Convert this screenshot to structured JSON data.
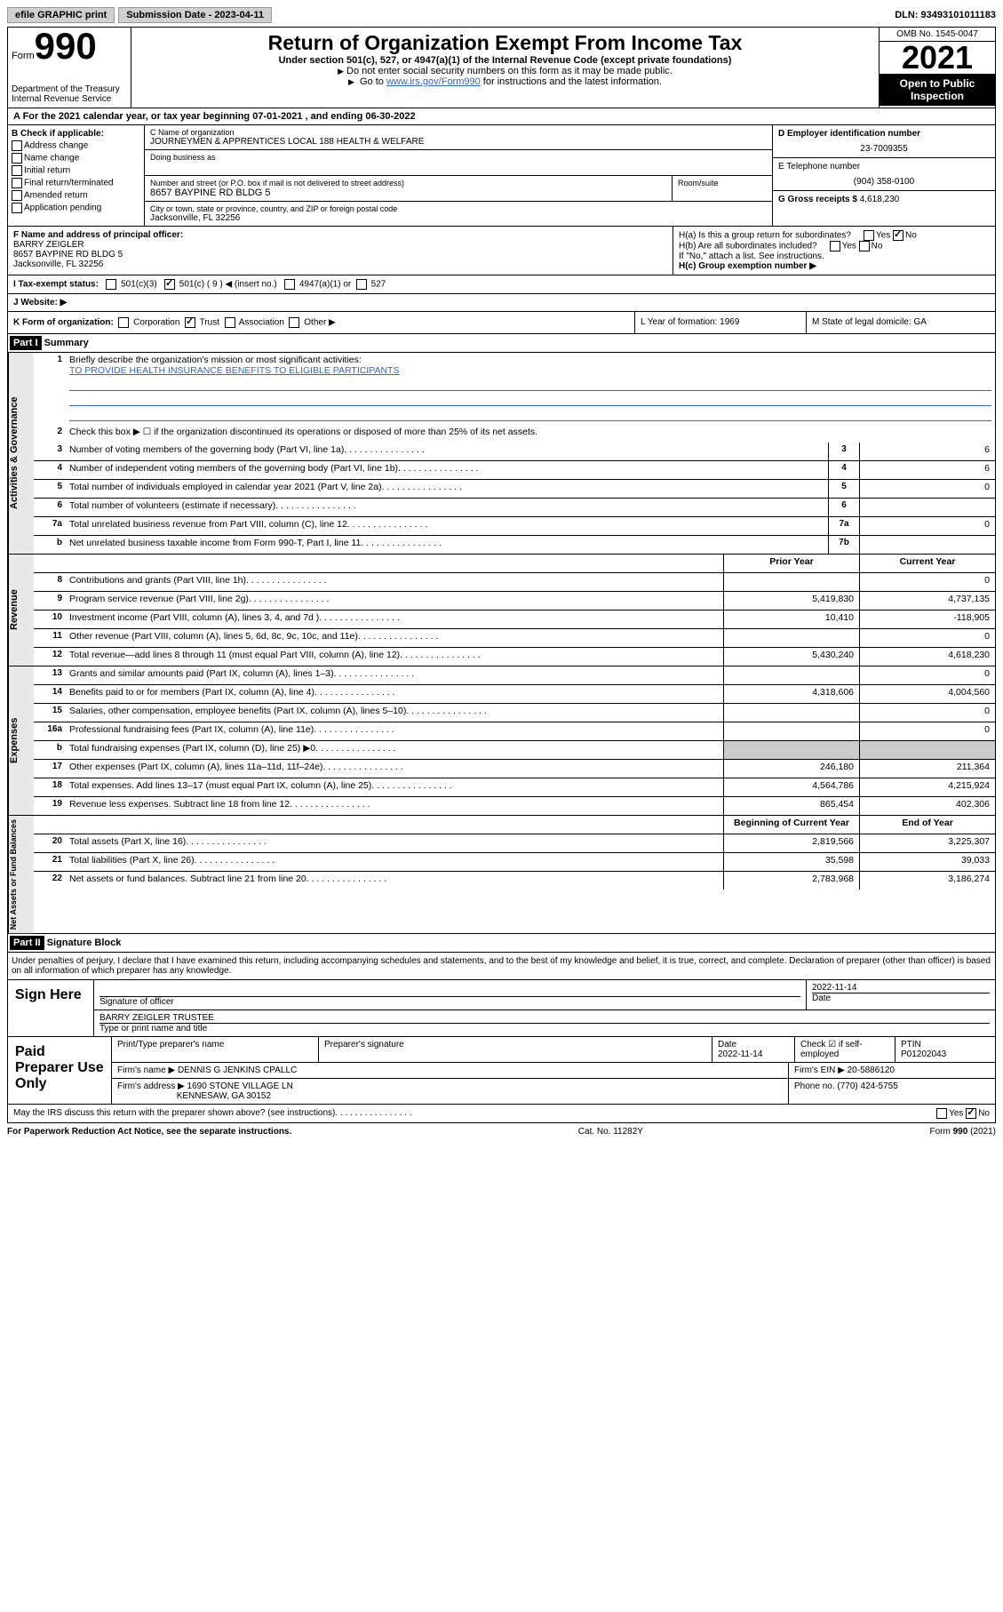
{
  "topbar": {
    "efile": "efile GRAPHIC print",
    "submission_label": "Submission Date - 2023-04-11",
    "dln_label": "DLN: 93493101011183"
  },
  "header": {
    "form_label": "Form",
    "form_num": "990",
    "title": "Return of Organization Exempt From Income Tax",
    "subtitle": "Under section 501(c), 527, or 4947(a)(1) of the Internal Revenue Code (except private foundations)",
    "note1": "Do not enter social security numbers on this form as it may be made public.",
    "note2_pre": "Go to ",
    "note2_link": "www.irs.gov/Form990",
    "note2_post": " for instructions and the latest information.",
    "dept": "Department of the Treasury\nInternal Revenue Service",
    "omb": "OMB No. 1545-0047",
    "year": "2021",
    "inspection": "Open to Public Inspection"
  },
  "section_a": "A For the 2021 calendar year, or tax year beginning 07-01-2021  , and ending 06-30-2022",
  "col_b": {
    "header": "B Check if applicable:",
    "items": [
      "Address change",
      "Name change",
      "Initial return",
      "Final return/terminated",
      "Amended return",
      "Application pending"
    ]
  },
  "col_c": {
    "name_label": "C Name of organization",
    "name": "JOURNEYMEN & APPRENTICES LOCAL 188 HEALTH & WELFARE",
    "dba_label": "Doing business as",
    "street_label": "Number and street (or P.O. box if mail is not delivered to street address)",
    "room_label": "Room/suite",
    "street": "8657 BAYPINE RD BLDG 5",
    "city_label": "City or town, state or province, country, and ZIP or foreign postal code",
    "city": "Jacksonville, FL  32256"
  },
  "col_de": {
    "d_label": "D Employer identification number",
    "d_val": "23-7009355",
    "e_label": "E Telephone number",
    "e_val": "(904) 358-0100",
    "g_label": "G Gross receipts $",
    "g_val": "4,618,230"
  },
  "officer": {
    "label": "F  Name and address of principal officer:",
    "name": "BARRY ZEIGLER",
    "addr1": "8657 BAYPINE RD BLDG 5",
    "addr2": "Jacksonville, FL  32256"
  },
  "h": {
    "a": "H(a)  Is this a group return for subordinates?",
    "b": "H(b)  Are all subordinates included?",
    "b_note": "If \"No,\" attach a list. See instructions.",
    "c": "H(c)  Group exemption number ▶"
  },
  "row_i": {
    "label": "I   Tax-exempt status:",
    "opt1": "501(c)(3)",
    "opt2": "501(c) ( 9 ) ◀ (insert no.)",
    "opt3": "4947(a)(1) or",
    "opt4": "527"
  },
  "row_j": "J   Website: ▶",
  "row_k": {
    "label": "K Form of organization:",
    "opts": [
      "Corporation",
      "Trust",
      "Association",
      "Other ▶"
    ],
    "l": "L Year of formation: 1969",
    "m": "M State of legal domicile: GA"
  },
  "part1": {
    "header": "Part I",
    "title": "Summary"
  },
  "summary": {
    "q1": "Briefly describe the organization's mission or most significant activities:",
    "mission": "TO PROVIDE HEALTH INSURANCE BENEFITS TO ELIGIBLE PARTICIPANTS",
    "q2": "Check this box ▶ ☐  if the organization discontinued its operations or disposed of more than 25% of its net assets.",
    "rows_gov": [
      {
        "n": "3",
        "label": "Number of voting members of the governing body (Part VI, line 1a)",
        "box": "3",
        "val": "6"
      },
      {
        "n": "4",
        "label": "Number of independent voting members of the governing body (Part VI, line 1b)",
        "box": "4",
        "val": "6"
      },
      {
        "n": "5",
        "label": "Total number of individuals employed in calendar year 2021 (Part V, line 2a)",
        "box": "5",
        "val": "0"
      },
      {
        "n": "6",
        "label": "Total number of volunteers (estimate if necessary)",
        "box": "6",
        "val": ""
      },
      {
        "n": "7a",
        "label": "Total unrelated business revenue from Part VIII, column (C), line 12",
        "box": "7a",
        "val": "0"
      },
      {
        "n": "b",
        "label": "Net unrelated business taxable income from Form 990-T, Part I, line 11",
        "box": "7b",
        "val": ""
      }
    ],
    "col_headers": {
      "prior": "Prior Year",
      "current": "Current Year"
    },
    "rows_rev": [
      {
        "n": "8",
        "label": "Contributions and grants (Part VIII, line 1h)",
        "prior": "",
        "cur": "0"
      },
      {
        "n": "9",
        "label": "Program service revenue (Part VIII, line 2g)",
        "prior": "5,419,830",
        "cur": "4,737,135"
      },
      {
        "n": "10",
        "label": "Investment income (Part VIII, column (A), lines 3, 4, and 7d )",
        "prior": "10,410",
        "cur": "-118,905"
      },
      {
        "n": "11",
        "label": "Other revenue (Part VIII, column (A), lines 5, 6d, 8c, 9c, 10c, and 11e)",
        "prior": "",
        "cur": "0"
      },
      {
        "n": "12",
        "label": "Total revenue—add lines 8 through 11 (must equal Part VIII, column (A), line 12)",
        "prior": "5,430,240",
        "cur": "4,618,230"
      }
    ],
    "rows_exp": [
      {
        "n": "13",
        "label": "Grants and similar amounts paid (Part IX, column (A), lines 1–3)",
        "prior": "",
        "cur": "0"
      },
      {
        "n": "14",
        "label": "Benefits paid to or for members (Part IX, column (A), line 4)",
        "prior": "4,318,606",
        "cur": "4,004,560"
      },
      {
        "n": "15",
        "label": "Salaries, other compensation, employee benefits (Part IX, column (A), lines 5–10)",
        "prior": "",
        "cur": "0"
      },
      {
        "n": "16a",
        "label": "Professional fundraising fees (Part IX, column (A), line 11e)",
        "prior": "",
        "cur": "0"
      },
      {
        "n": "b",
        "label": "Total fundraising expenses (Part IX, column (D), line 25) ▶0",
        "prior": "shaded",
        "cur": "shaded"
      },
      {
        "n": "17",
        "label": "Other expenses (Part IX, column (A), lines 11a–11d, 11f–24e)",
        "prior": "246,180",
        "cur": "211,364"
      },
      {
        "n": "18",
        "label": "Total expenses. Add lines 13–17 (must equal Part IX, column (A), line 25)",
        "prior": "4,564,786",
        "cur": "4,215,924"
      },
      {
        "n": "19",
        "label": "Revenue less expenses. Subtract line 18 from line 12",
        "prior": "865,454",
        "cur": "402,306"
      }
    ],
    "col_headers2": {
      "begin": "Beginning of Current Year",
      "end": "End of Year"
    },
    "rows_net": [
      {
        "n": "20",
        "label": "Total assets (Part X, line 16)",
        "prior": "2,819,566",
        "cur": "3,225,307"
      },
      {
        "n": "21",
        "label": "Total liabilities (Part X, line 26)",
        "prior": "35,598",
        "cur": "39,033"
      },
      {
        "n": "22",
        "label": "Net assets or fund balances. Subtract line 21 from line 20",
        "prior": "2,783,968",
        "cur": "3,186,274"
      }
    ]
  },
  "vtabs": {
    "gov": "Activities & Governance",
    "rev": "Revenue",
    "exp": "Expenses",
    "net": "Net Assets or Fund Balances"
  },
  "part2": {
    "header": "Part II",
    "title": "Signature Block",
    "decl": "Under penalties of perjury, I declare that I have examined this return, including accompanying schedules and statements, and to the best of my knowledge and belief, it is true, correct, and complete. Declaration of preparer (other than officer) is based on all information of which preparer has any knowledge."
  },
  "sign": {
    "left": "Sign Here",
    "date": "2022-11-14",
    "sig_label": "Signature of officer",
    "date_label": "Date",
    "name": "BARRY ZEIGLER  TRUSTEE",
    "name_label": "Type or print name and title"
  },
  "preparer": {
    "left": "Paid Preparer Use Only",
    "h1": "Print/Type preparer's name",
    "h2": "Preparer's signature",
    "h3": "Date",
    "h3v": "2022-11-14",
    "h4": "Check ☑ if self-employed",
    "h5": "PTIN",
    "h5v": "P01202043",
    "firm_label": "Firm's name    ▶",
    "firm": "DENNIS G JENKINS CPALLC",
    "ein_label": "Firm's EIN ▶",
    "ein": "20-5886120",
    "addr_label": "Firm's address ▶",
    "addr1": "1690 STONE VILLAGE LN",
    "addr2": "KENNESAW, GA  30152",
    "phone_label": "Phone no.",
    "phone": "(770) 424-5755"
  },
  "discuss": "May the IRS discuss this return with the preparer shown above? (see instructions)",
  "footer": {
    "left": "For Paperwork Reduction Act Notice, see the separate instructions.",
    "mid": "Cat. No. 11282Y",
    "right": "Form 990 (2021)"
  }
}
